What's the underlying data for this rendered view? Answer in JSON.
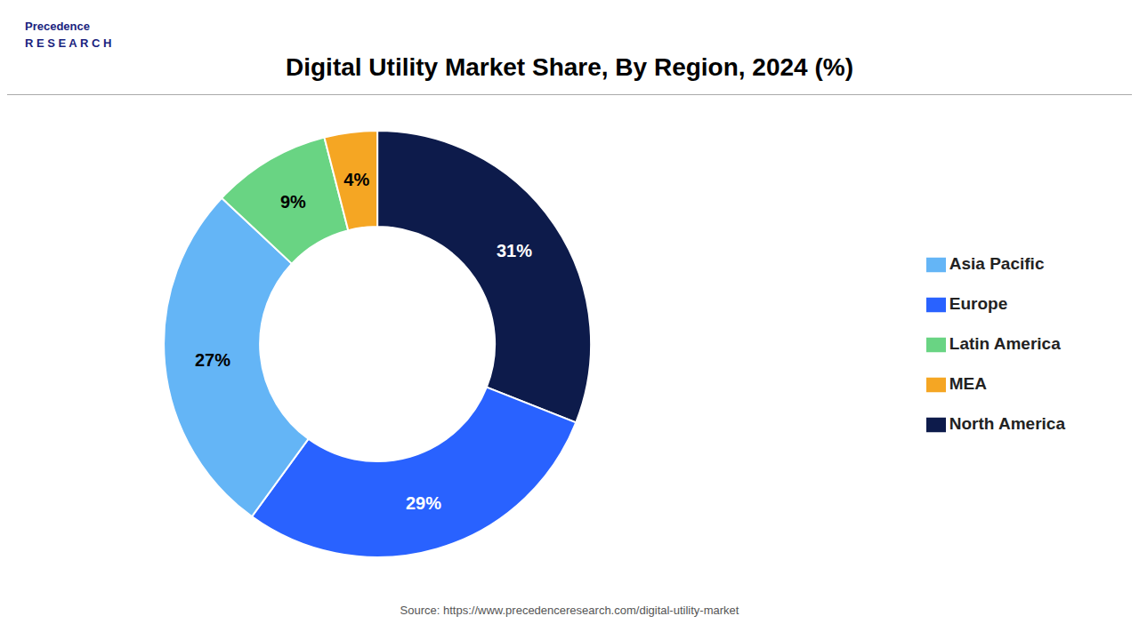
{
  "chart_data": {
    "type": "pie",
    "title": "Digital Utility Market Share, By Region, 2024 (%)",
    "categories": [
      "North America",
      "Europe",
      "Asia Pacific",
      "Latin America",
      "MEA"
    ],
    "values": [
      31,
      29,
      27,
      9,
      4
    ],
    "value_labels": [
      "31%",
      "29%",
      "27%",
      "9%",
      "4%"
    ],
    "colors": [
      "#0d1b4b",
      "#2962ff",
      "#64b5f6",
      "#69d483",
      "#f5a623"
    ],
    "data_labels": true,
    "legend": "right",
    "annotations": [
      "Source: https://www.precedenceresearch.com/digital-utility-market",
      "Precedence\nR E S E A R C H"
    ]
  }
}
